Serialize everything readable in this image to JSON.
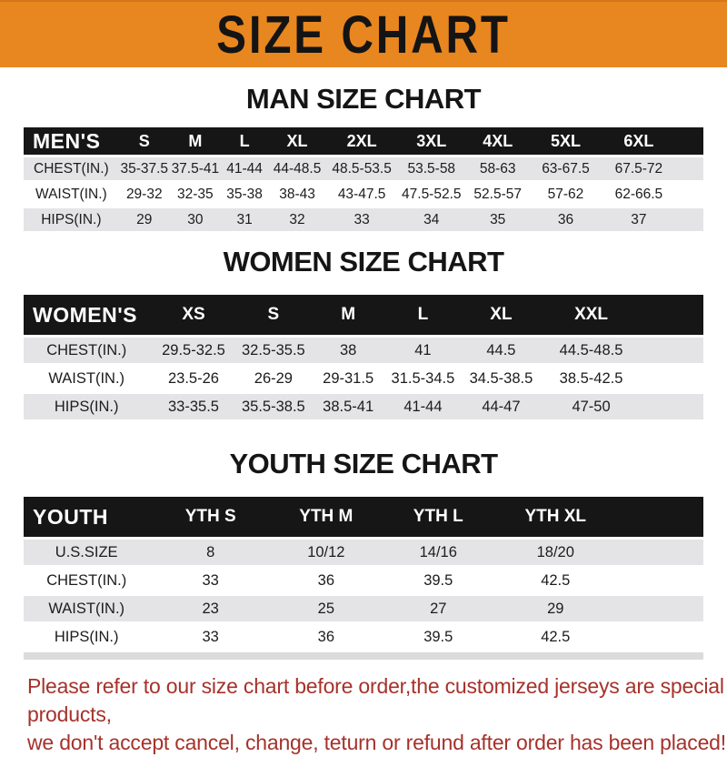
{
  "banner": {
    "title": "SIZE CHART"
  },
  "colors": {
    "banner_bg": "#E8861F",
    "banner_text": "#141414",
    "header_bar_bg": "#161616",
    "header_bar_text": "#FFFFFF",
    "row_alt_bg": "#E4E4E6",
    "notice_text": "#A5322B"
  },
  "sections": [
    {
      "heading": "MAN SIZE CHART",
      "table": {
        "header_label": "MEN'S",
        "columns": [
          "S",
          "M",
          "L",
          "XL",
          "2XL",
          "3XL",
          "4XL",
          "5XL",
          "6XL"
        ],
        "rows": [
          {
            "label": "CHEST(IN.)",
            "values": [
              "35-37.5",
              "37.5-41",
              "41-44",
              "44-48.5",
              "48.5-53.5",
              "53.5-58",
              "58-63",
              "63-67.5",
              "67.5-72"
            ]
          },
          {
            "label": "WAIST(IN.)",
            "values": [
              "29-32",
              "32-35",
              "35-38",
              "38-43",
              "43-47.5",
              "47.5-52.5",
              "52.5-57",
              "57-62",
              "62-66.5"
            ]
          },
          {
            "label": "HIPS(IN.)",
            "values": [
              "29",
              "30",
              "31",
              "32",
              "33",
              "34",
              "35",
              "36",
              "37"
            ]
          }
        ]
      }
    },
    {
      "heading": "WOMEN SIZE CHART",
      "table": {
        "header_label": "WOMEN'S",
        "columns": [
          "XS",
          "S",
          "M",
          "L",
          "XL",
          "XXL"
        ],
        "rows": [
          {
            "label": "CHEST(IN.)",
            "values": [
              "29.5-32.5",
              "32.5-35.5",
              "38",
              "41",
              "44.5",
              "44.5-48.5"
            ]
          },
          {
            "label": "WAIST(IN.)",
            "values": [
              "23.5-26",
              "26-29",
              "29-31.5",
              "31.5-34.5",
              "34.5-38.5",
              "38.5-42.5"
            ]
          },
          {
            "label": "HIPS(IN.)",
            "values": [
              "33-35.5",
              "35.5-38.5",
              "38.5-41",
              "41-44",
              "44-47",
              "47-50"
            ]
          }
        ]
      }
    },
    {
      "heading": "YOUTH SIZE CHART",
      "table": {
        "header_label": "YOUTH",
        "columns": [
          "YTH S",
          "YTH M",
          "YTH L",
          "YTH XL"
        ],
        "rows": [
          {
            "label": "U.S.SIZE",
            "values": [
              "8",
              "10/12",
              "14/16",
              "18/20"
            ]
          },
          {
            "label": "CHEST(IN.)",
            "values": [
              "33",
              "36",
              "39.5",
              "42.5"
            ]
          },
          {
            "label": "WAIST(IN.)",
            "values": [
              "23",
              "25",
              "27",
              "29"
            ]
          },
          {
            "label": "HIPS(IN.)",
            "values": [
              "33",
              "36",
              "39.5",
              "42.5"
            ]
          }
        ]
      }
    }
  ],
  "footer": {
    "line1": "Please refer to our size chart before order,the customized jerseys are special products,",
    "line2": "we don't accept cancel, change, teturn or refund after order has been placed!"
  }
}
